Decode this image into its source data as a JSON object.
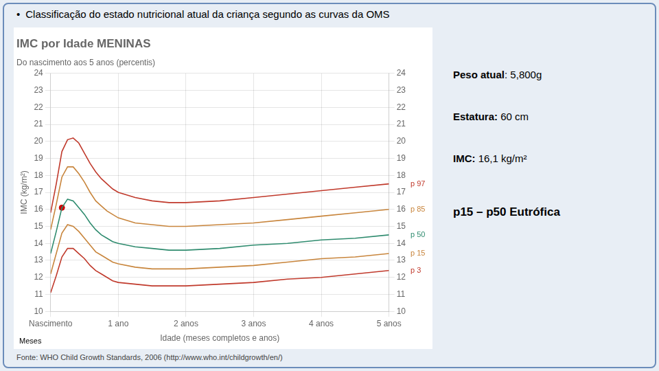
{
  "chart_data": {
    "type": "line",
    "title": "IMC por Idade MENINAS",
    "subtitle": "Do nascimento aos 5 anos (percentis)",
    "x_label": "Idade (meses completos e anos)",
    "y_label": "IMC (kg/m²)",
    "x": [
      0,
      1,
      2,
      3,
      4,
      5,
      6,
      7,
      8,
      9,
      10,
      11,
      12,
      15,
      18,
      21,
      24,
      30,
      36,
      42,
      48,
      54,
      60
    ],
    "series": [
      {
        "name": "p 97",
        "color": "#c0392b",
        "values": [
          15.8,
          17.5,
          19.4,
          20.1,
          20.2,
          19.9,
          19.3,
          18.7,
          18.2,
          17.8,
          17.5,
          17.2,
          17.0,
          16.7,
          16.5,
          16.4,
          16.4,
          16.5,
          16.7,
          16.9,
          17.1,
          17.3,
          17.5
        ]
      },
      {
        "name": "p 85",
        "color": "#c8853c",
        "values": [
          14.8,
          16.3,
          17.9,
          18.5,
          18.5,
          18.1,
          17.6,
          17.0,
          16.5,
          16.2,
          15.9,
          15.7,
          15.5,
          15.2,
          15.1,
          15.0,
          15.0,
          15.1,
          15.2,
          15.4,
          15.6,
          15.8,
          16.0
        ]
      },
      {
        "name": "p 50",
        "color": "#2e8b6e",
        "values": [
          13.4,
          14.7,
          16.1,
          16.6,
          16.5,
          16.1,
          15.7,
          15.2,
          14.8,
          14.5,
          14.3,
          14.1,
          14.0,
          13.8,
          13.7,
          13.6,
          13.6,
          13.7,
          13.9,
          14.0,
          14.2,
          14.3,
          14.5
        ]
      },
      {
        "name": "p 15",
        "color": "#c8853c",
        "values": [
          12.2,
          13.4,
          14.6,
          15.1,
          15.0,
          14.7,
          14.3,
          13.9,
          13.5,
          13.3,
          13.1,
          12.9,
          12.8,
          12.6,
          12.5,
          12.5,
          12.5,
          12.6,
          12.7,
          12.9,
          13.1,
          13.2,
          13.4
        ]
      },
      {
        "name": "p 3",
        "color": "#c0392b",
        "values": [
          11.1,
          12.1,
          13.2,
          13.7,
          13.7,
          13.4,
          13.1,
          12.7,
          12.4,
          12.2,
          12.0,
          11.8,
          11.7,
          11.6,
          11.5,
          11.5,
          11.5,
          11.6,
          11.7,
          11.9,
          12.0,
          12.2,
          12.4
        ]
      },
      {
        "type": "scatter",
        "marker": "circle",
        "color": "#cc0000",
        "x": [
          2
        ],
        "values": [
          16.1
        ]
      }
    ],
    "xlim": [
      0,
      60
    ],
    "xticks": [
      {
        "value": 0,
        "label": "Nascimento"
      },
      {
        "value": 12,
        "label": "1 ano"
      },
      {
        "value": 24,
        "label": "2 anos"
      },
      {
        "value": 36,
        "label": "3 anos"
      },
      {
        "value": 48,
        "label": "4 anos"
      },
      {
        "value": 60,
        "label": "5 anos"
      }
    ],
    "ylim": [
      10,
      24
    ],
    "yticks": [
      10,
      11,
      12,
      13,
      14,
      15,
      16,
      17,
      18,
      19,
      20,
      21,
      22,
      23,
      24
    ],
    "y2lim": [
      10,
      24
    ],
    "y2ticks": [
      10,
      11,
      12,
      13,
      14,
      15,
      16,
      17,
      18,
      19,
      20,
      21,
      22,
      23,
      24
    ],
    "grid": true,
    "annotations": [
      "•",
      "Classificação do estado nutricional atual da criança segundo as curvas da OMS",
      "Meses",
      "Peso atual",
      ": 5,800g",
      "Estatura:",
      " 60 cm",
      "IMC:",
      " 16,1 kg/m²",
      "p15 – p50 Eutrófica",
      "Fonte: WHO Child Growth Standards, 2006 (http://www.who.int/childgrowth/en/)"
    ]
  }
}
